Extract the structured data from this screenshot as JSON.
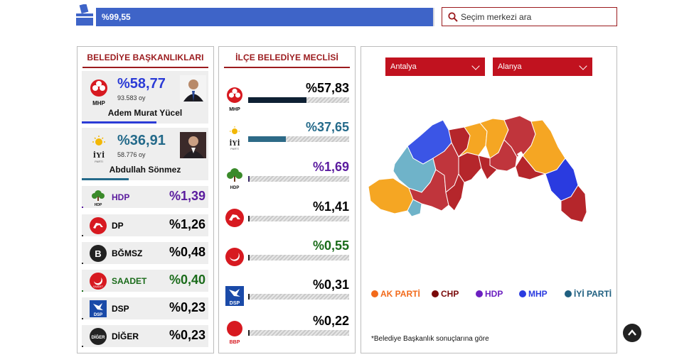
{
  "progress": {
    "label": "%99,55",
    "fraction": 0.9955
  },
  "search": {
    "placeholder": "Seçim merkezi ara"
  },
  "mayor": {
    "title": "BELEDİYE BAŞKANLIKLARI",
    "top": [
      {
        "party": "MHP",
        "pct": "%58,77",
        "votes": "93.583 oy",
        "name": "Adem Murat Yücel",
        "color": "#2b3bd6",
        "fraction": 0.5877
      },
      {
        "party": "İYİ",
        "pct": "%36,91",
        "votes": "58.776 oy",
        "name": "Abdullah Sönmez",
        "color": "#246a8a",
        "fraction": 0.3691
      }
    ],
    "others": [
      {
        "party": "HDP",
        "pct": "%1,39",
        "color": "#5a1b9e",
        "logo_text": "HDP",
        "fraction": 0.0139
      },
      {
        "party": "DP",
        "pct": "%1,26",
        "color": "#111111",
        "logo_text": "DP",
        "fraction": 0.0126
      },
      {
        "party": "BĞMSZ",
        "pct": "%0,48",
        "color": "#111111",
        "logo_text": "B",
        "fraction": 0.0048
      },
      {
        "party": "SAADET",
        "pct": "%0,40",
        "color": "#1a6b1a",
        "logo_text": "SAADET",
        "fraction": 0.004
      },
      {
        "party": "DSP",
        "pct": "%0,23",
        "color": "#111111",
        "logo_text": "DSP",
        "fraction": 0.0023
      },
      {
        "party": "DİĞER",
        "pct": "%0,23",
        "color": "#111111",
        "logo_text": "DİĞER",
        "fraction": 0.0023
      }
    ]
  },
  "council": {
    "title": "İLÇE BELEDİYE MECLİSİ",
    "rows": [
      {
        "party": "MHP",
        "pct": "%57,83",
        "color": "#111111",
        "bar": "#0e2033",
        "fraction": 0.5783
      },
      {
        "party": "İYİ",
        "pct": "%37,65",
        "color": "#246a8a",
        "bar": "#2d6a87",
        "fraction": 0.3765
      },
      {
        "party": "HDP",
        "pct": "%1,69",
        "color": "#5a1b9e",
        "bar": "#3b2a66",
        "fraction": 0.0169
      },
      {
        "party": "DP",
        "pct": "%1,41",
        "color": "#111111",
        "bar": "#222222",
        "fraction": 0.0141
      },
      {
        "party": "SAADET",
        "pct": "%0,55",
        "color": "#1a6b1a",
        "bar": "#222222",
        "fraction": 0.0055
      },
      {
        "party": "DSP",
        "pct": "%0,31",
        "color": "#111111",
        "bar": "#222222",
        "fraction": 0.0031
      },
      {
        "party": "BBP",
        "pct": "%0,22",
        "color": "#111111",
        "bar": "#222222",
        "fraction": 0.0022
      }
    ]
  },
  "map": {
    "province": "Antalya",
    "district": "Alanya",
    "legend": [
      {
        "label": "AK PARTİ",
        "color": "#f26a1b"
      },
      {
        "label": "CHP",
        "color": "#7a0a0a"
      },
      {
        "label": "HDP",
        "color": "#6b1fc0"
      },
      {
        "label": "MHP",
        "color": "#2a3be0"
      },
      {
        "label": "İYİ PARTİ",
        "color": "#1f5f80"
      }
    ],
    "footnote": "*Belediye Başkanlık sonuçlarına göre"
  }
}
